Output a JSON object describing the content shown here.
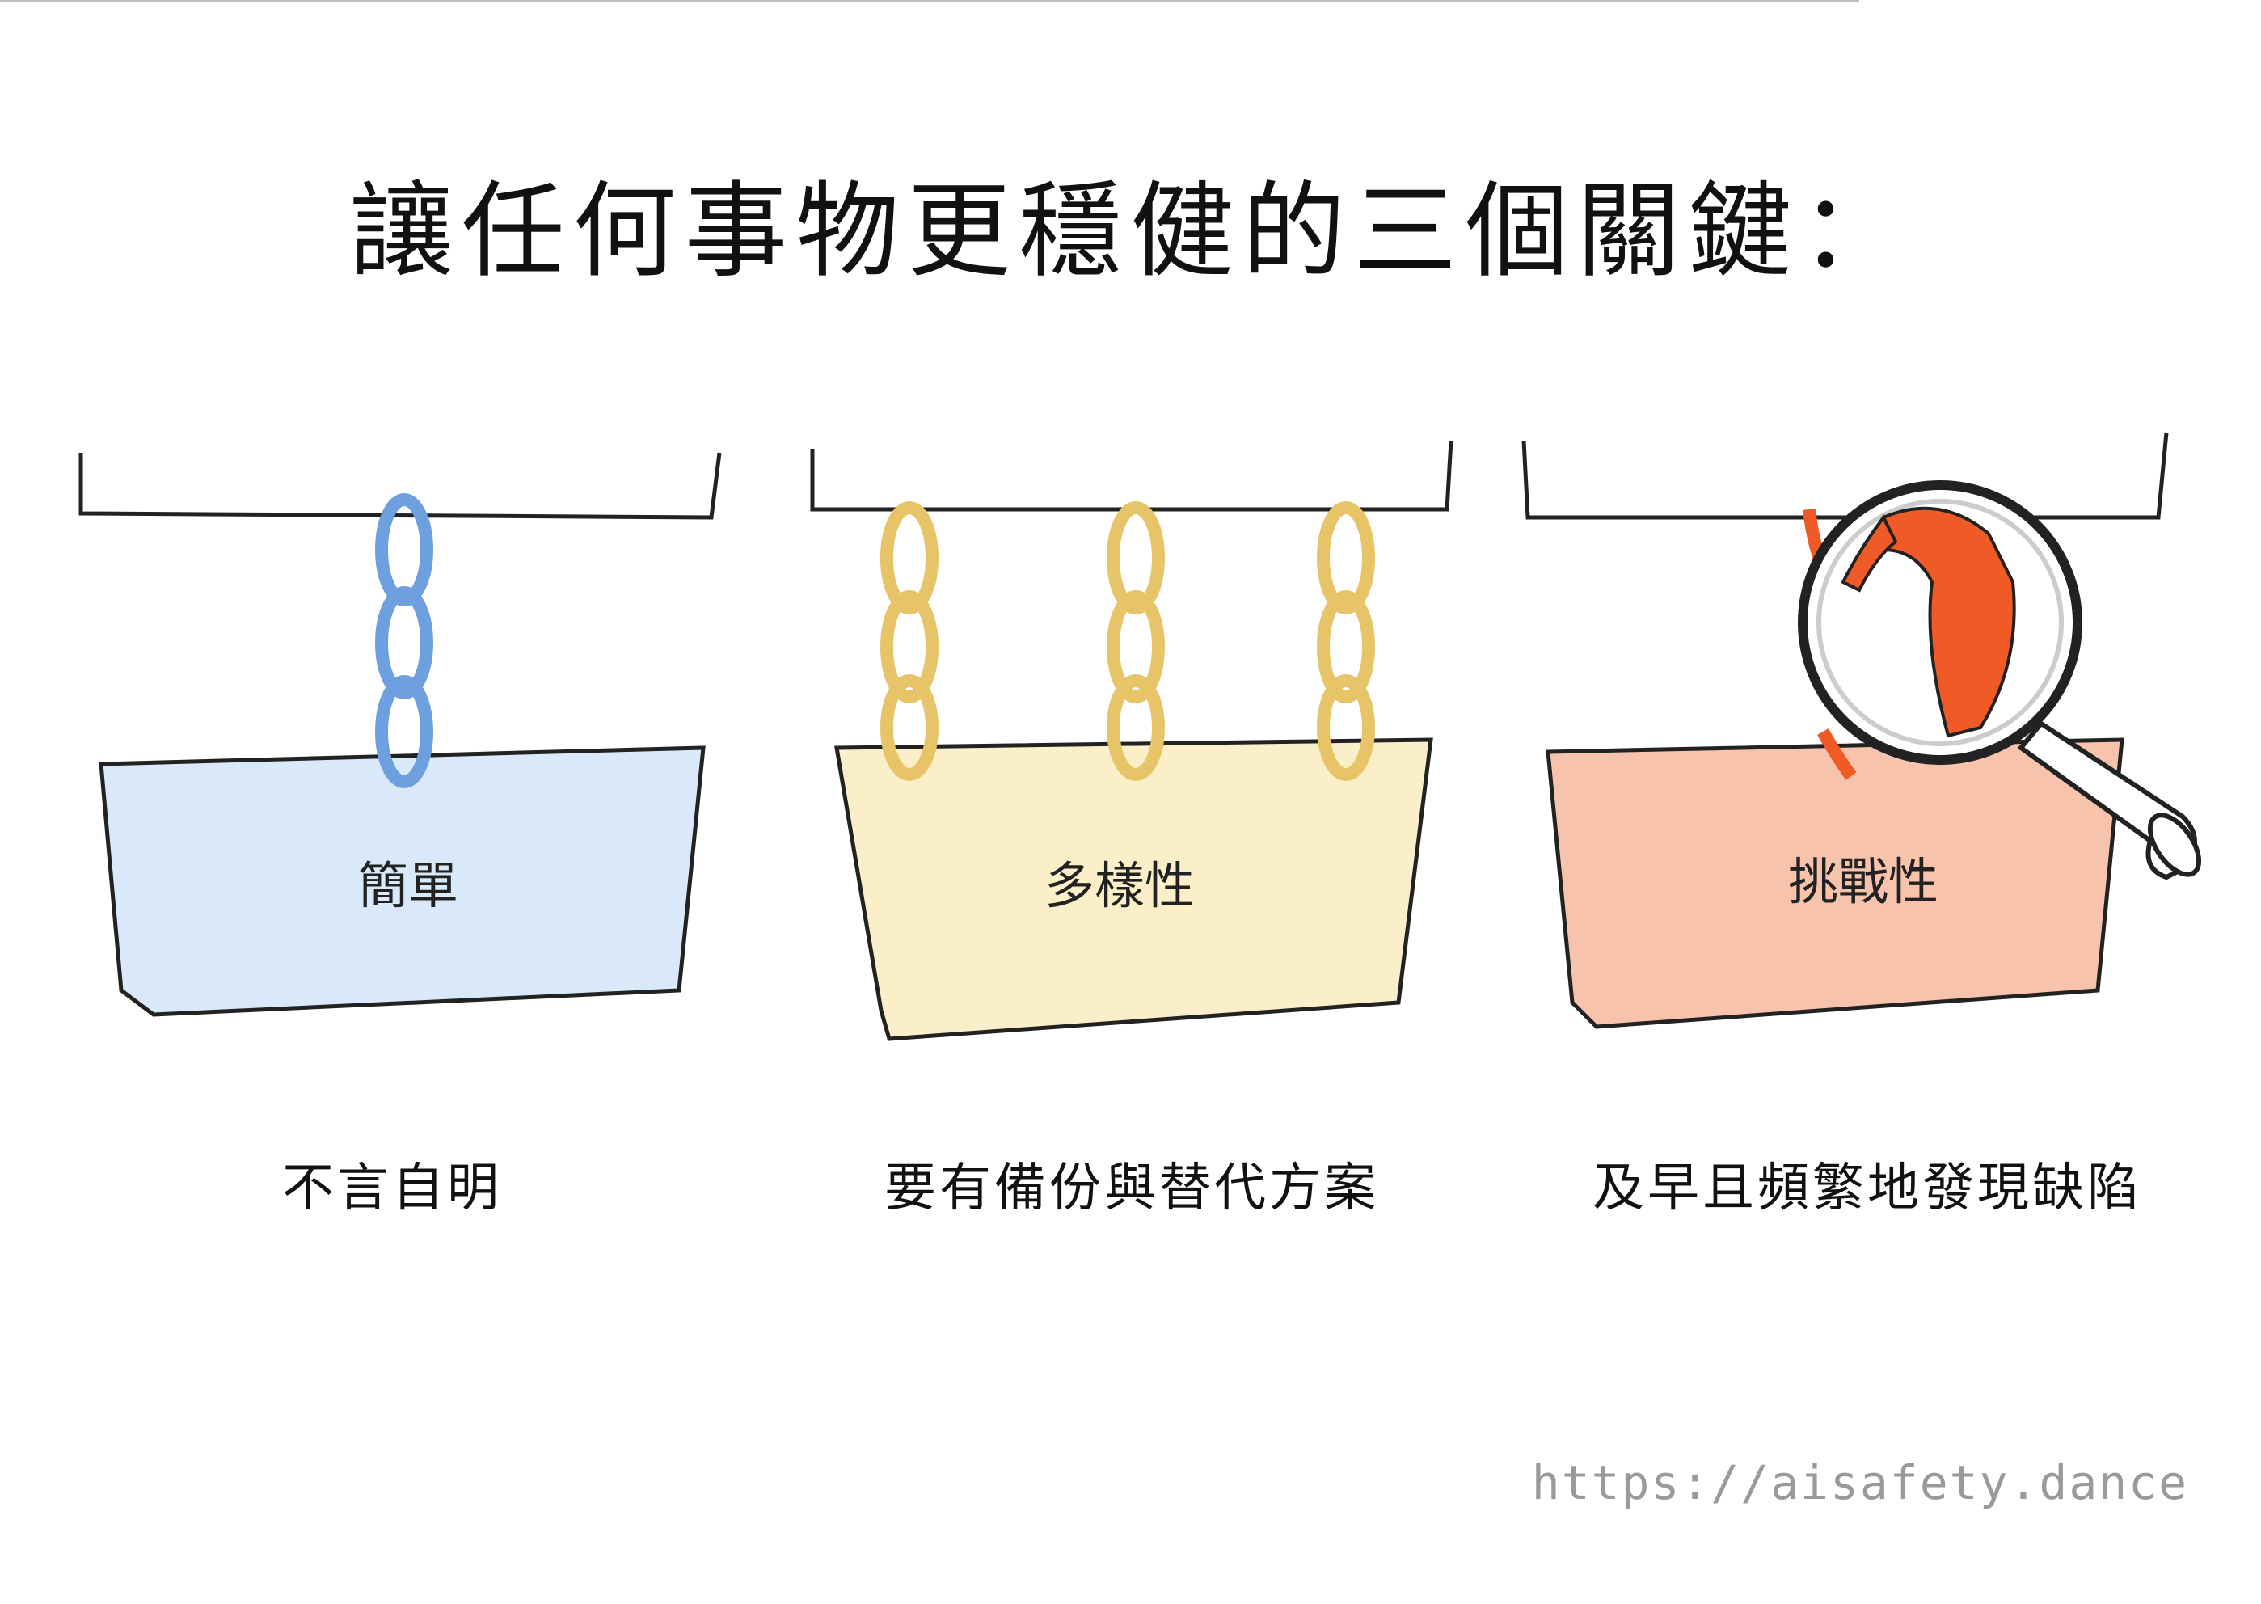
{
  "title": "讓任何事物更穩健的三個關鍵：",
  "panels": [
    {
      "label": "簡單",
      "caption": "不言自明",
      "color": "#6ea0e0",
      "fill": "#d9e9fa",
      "chains": 1
    },
    {
      "label": "多樣性",
      "caption": "要有備份與替代方案",
      "color": "#e8c468",
      "fill": "#fbefc9",
      "chains": 3
    },
    {
      "label": "挑戰性",
      "caption": "及早且頻繁地發現缺陷",
      "color": "#ef5a26",
      "fill": "#f8c3ad",
      "chains": 1,
      "magnifier": true
    }
  ],
  "url": "https://aisafety.dance"
}
